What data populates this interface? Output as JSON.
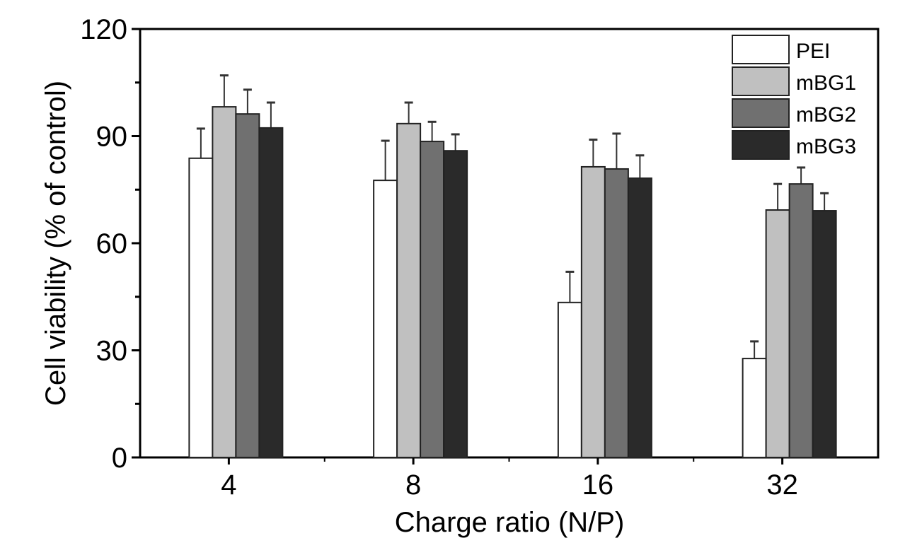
{
  "chart_data": {
    "type": "bar",
    "title": "",
    "xlabel": "Charge ratio (N/P)",
    "ylabel": "Cell viability (% of control)",
    "ylim": [
      0,
      120
    ],
    "yticks": [
      0,
      30,
      60,
      90,
      120
    ],
    "categories": [
      "4",
      "8",
      "16",
      "32"
    ],
    "legend_position": "top-right",
    "grid": false,
    "series": [
      {
        "name": "PEI",
        "color": "#ffffff",
        "values": [
          83.8,
          77.6,
          43.4,
          27.7
        ],
        "errors": [
          8.3,
          11.1,
          8.6,
          4.8
        ]
      },
      {
        "name": "mBG1",
        "color": "#c0c0c0",
        "values": [
          98.2,
          93.5,
          81.4,
          69.3
        ],
        "errors": [
          8.8,
          5.9,
          7.6,
          7.3
        ]
      },
      {
        "name": "mBG2",
        "color": "#707070",
        "values": [
          96.2,
          88.5,
          80.8,
          76.6
        ],
        "errors": [
          6.8,
          5.5,
          9.9,
          4.6
        ]
      },
      {
        "name": "mBG3",
        "color": "#2a2a2a",
        "values": [
          92.3,
          85.9,
          78.2,
          69.1
        ],
        "errors": [
          7.1,
          4.6,
          6.4,
          4.9
        ]
      }
    ]
  }
}
